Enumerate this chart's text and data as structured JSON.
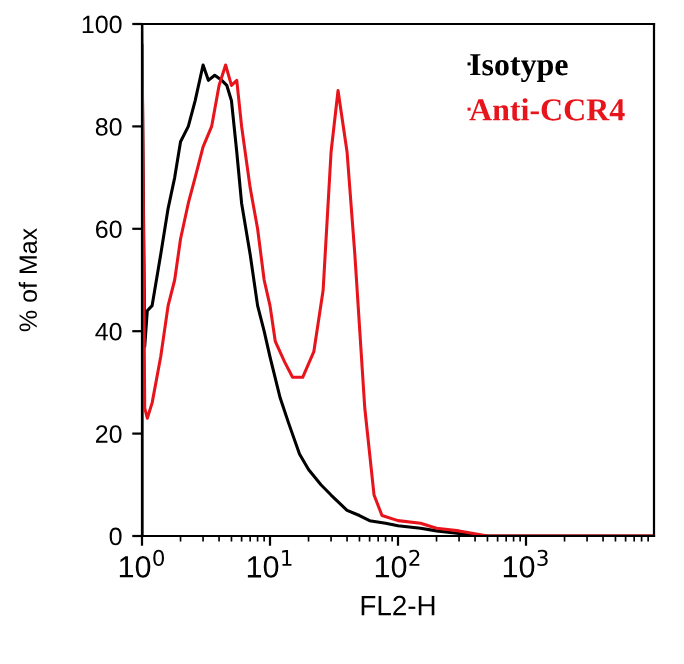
{
  "chart_data": {
    "type": "line",
    "xlabel": "FL2-H",
    "ylabel": "% of Max",
    "log": "x",
    "xlim": [
      1,
      10000
    ],
    "ylim": [
      0,
      100
    ],
    "xticks": [
      {
        "value": 1,
        "label": "10$^{0}$"
      },
      {
        "value": 10,
        "label": "10$^{1}$"
      },
      {
        "value": 100,
        "label": "10$^{2}$"
      },
      {
        "value": 1000,
        "label": "10$^{3}$"
      }
    ],
    "yticks": [
      0,
      20,
      40,
      60,
      80,
      100
    ],
    "grid": false,
    "legend": "top right",
    "marker": "none",
    "line_style": "solid",
    "series": [
      {
        "name": "Isotype",
        "color": "#000000",
        "x": [
          1,
          1,
          1.05,
          1.1,
          1.2,
          1.4,
          1.6,
          1.8,
          2,
          2.3,
          2.6,
          3,
          3.3,
          3.7,
          4.2,
          4.6,
          5,
          5.5,
          6,
          7,
          8,
          9,
          10,
          12,
          14,
          17,
          20,
          25,
          30,
          40,
          50,
          60,
          80,
          100,
          150,
          200,
          300,
          500,
          10000
        ],
        "values": [
          0,
          96,
          37,
          44,
          45,
          55,
          64,
          70,
          77,
          80,
          85,
          92,
          89,
          90,
          89,
          88,
          85,
          75,
          65,
          55,
          45,
          40,
          35,
          27,
          22,
          16,
          13,
          10,
          8,
          5,
          4,
          3,
          2.5,
          2,
          1.5,
          1,
          0.5,
          0,
          0
        ]
      },
      {
        "name": "Anti-CCR4",
        "color": "#e8141c",
        "x": [
          1,
          1,
          1.05,
          1.1,
          1.2,
          1.4,
          1.6,
          1.8,
          2,
          2.3,
          2.6,
          3,
          3.5,
          4,
          4.5,
          5,
          5.5,
          6,
          7,
          8,
          9,
          10,
          11,
          13,
          15,
          18,
          22,
          26,
          30,
          34,
          40,
          46,
          55,
          65,
          75,
          100,
          150,
          200,
          300,
          500,
          10000
        ],
        "values": [
          0,
          100,
          25,
          23,
          26,
          35,
          45,
          50,
          58,
          65,
          70,
          76,
          80,
          88,
          92,
          88,
          89,
          80,
          68,
          60,
          50,
          45,
          38,
          34,
          31,
          31,
          36,
          48,
          75,
          87,
          75,
          55,
          25,
          8,
          4,
          3,
          2.5,
          1.5,
          1,
          0,
          0
        ]
      }
    ]
  }
}
